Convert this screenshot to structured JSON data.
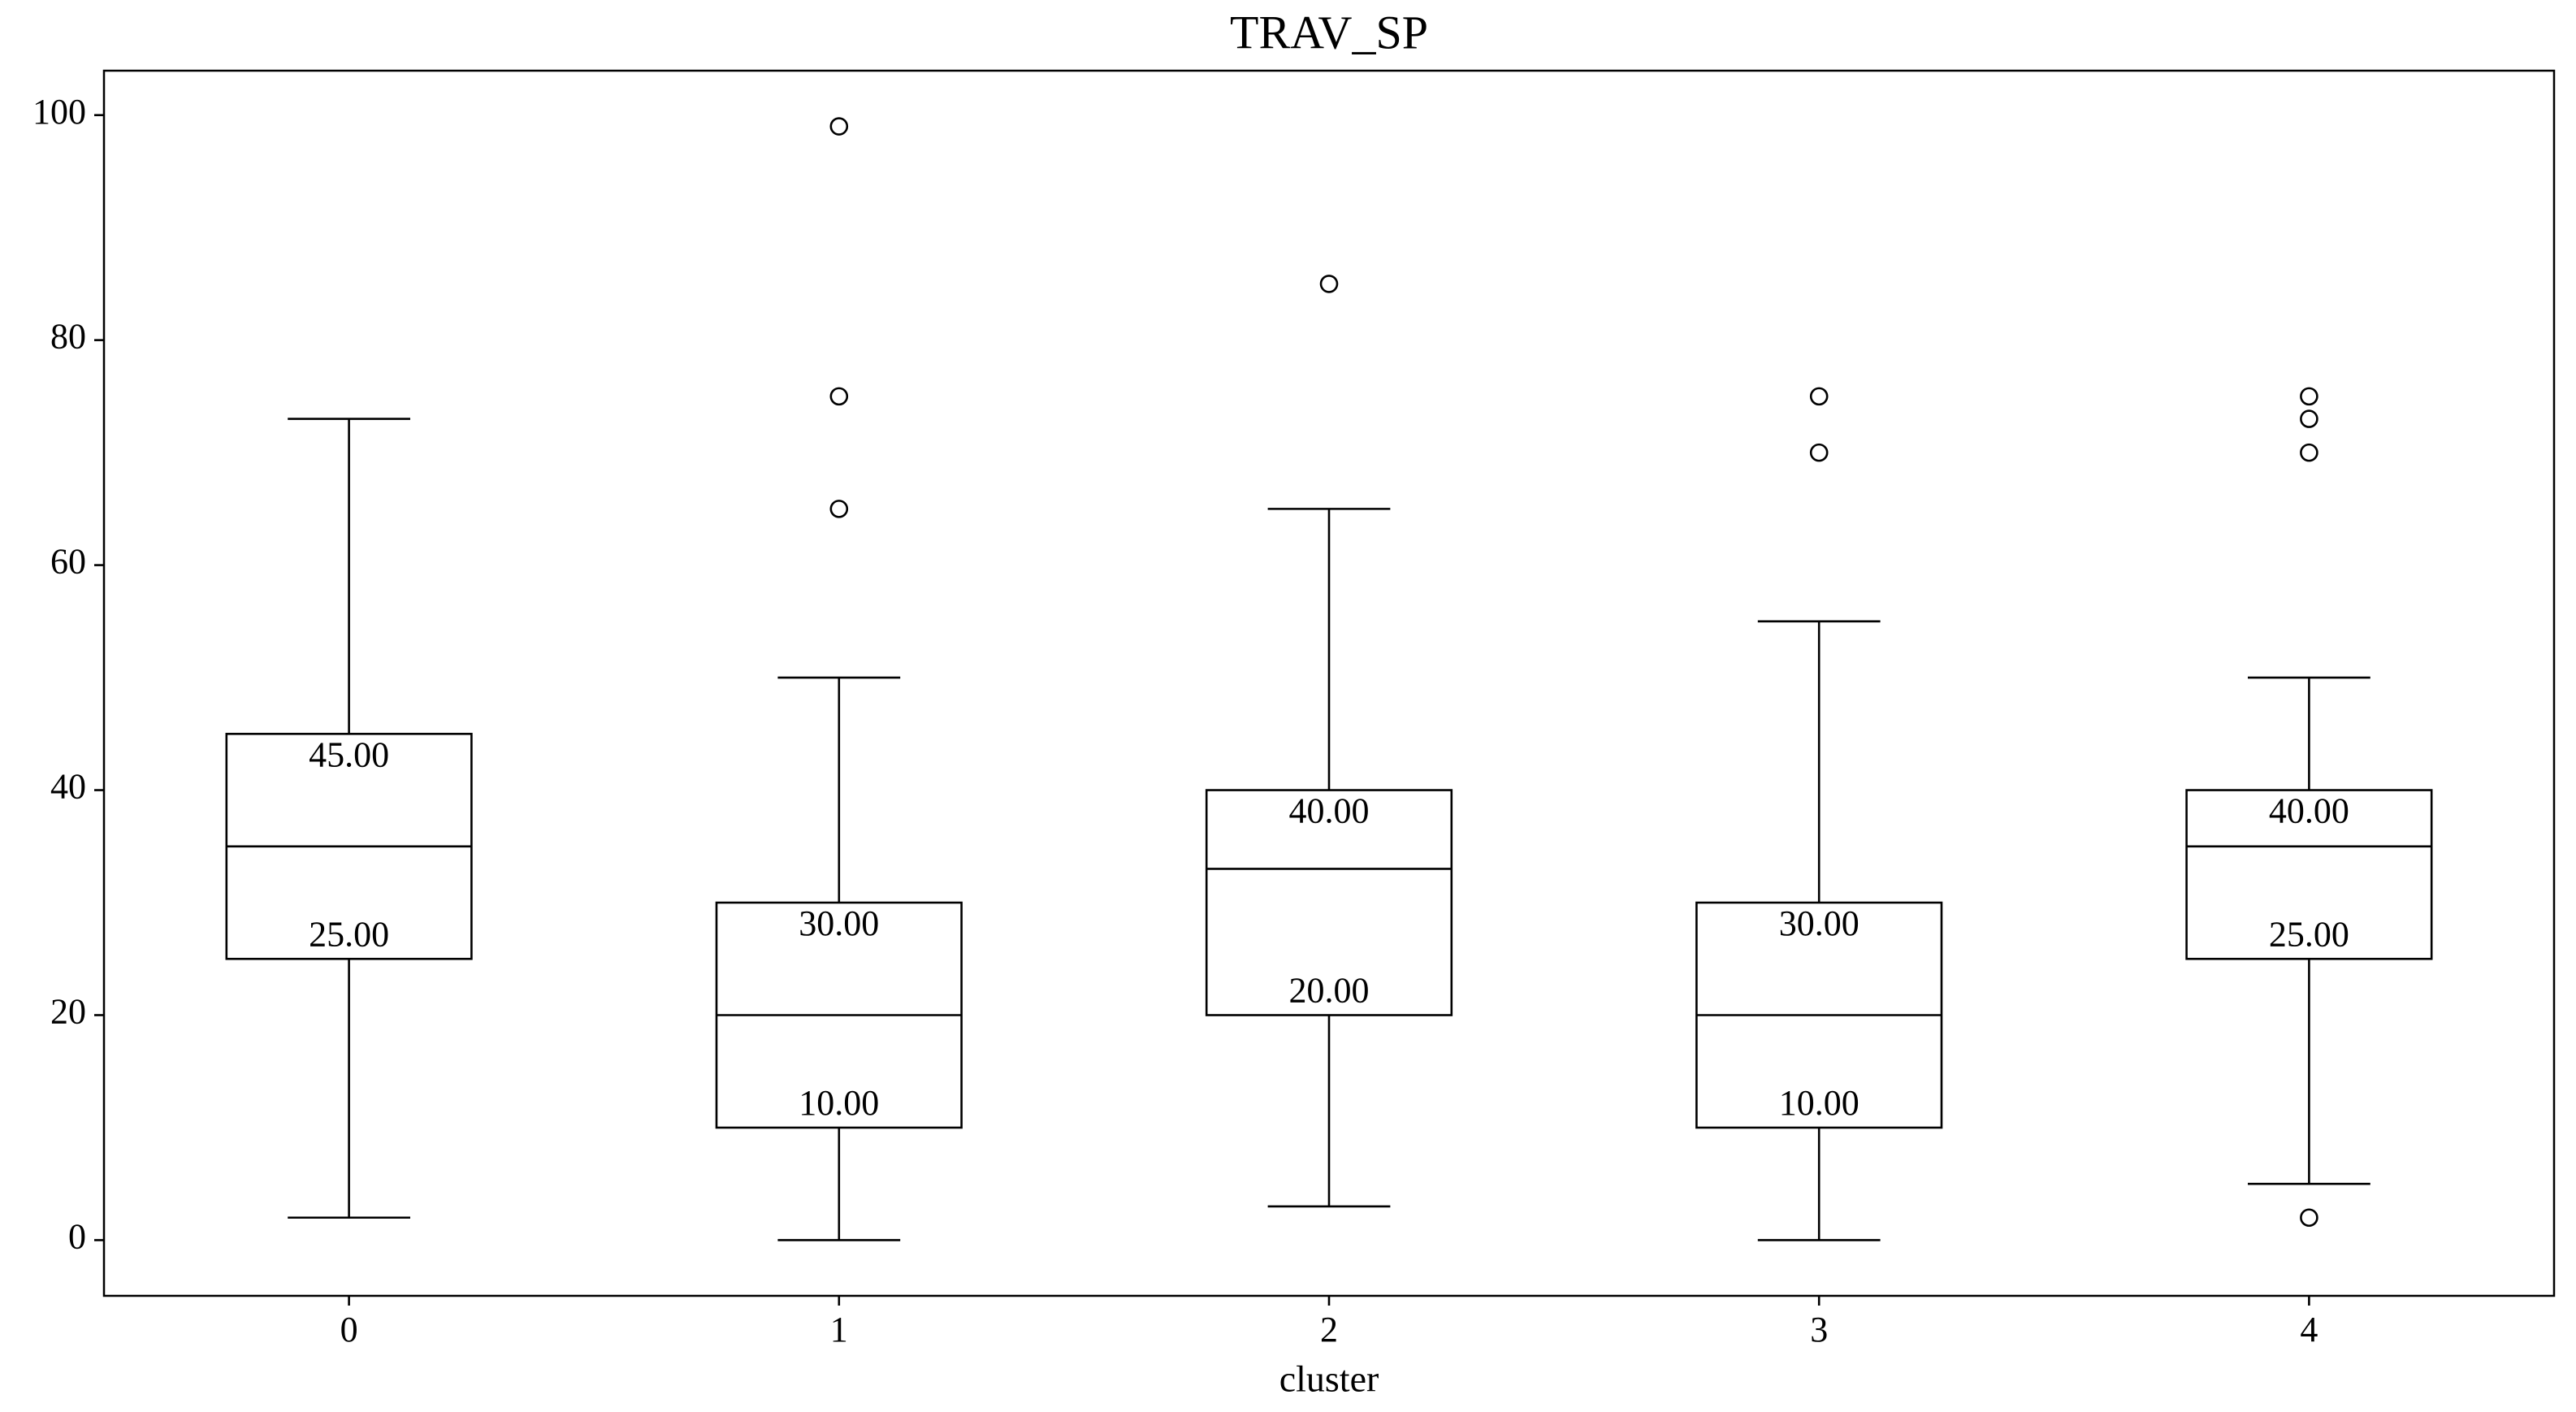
{
  "chart_data": {
    "type": "box",
    "title": "TRAV_SP",
    "xlabel": "cluster",
    "categories": [
      "0",
      "1",
      "2",
      "3",
      "4"
    ],
    "boxes": [
      {
        "whislo": 2,
        "q1": 25,
        "med": 35,
        "q3": 45,
        "whishi": 73,
        "fliers": [],
        "q1_label": "25.00",
        "q3_label": "45.00"
      },
      {
        "whislo": 0,
        "q1": 10,
        "med": 20,
        "q3": 30,
        "whishi": 50,
        "fliers": [
          65,
          75,
          99
        ],
        "q1_label": "10.00",
        "q3_label": "30.00"
      },
      {
        "whislo": 3,
        "q1": 20,
        "med": 33,
        "q3": 40,
        "whishi": 65,
        "fliers": [
          85
        ],
        "q1_label": "20.00",
        "q3_label": "40.00"
      },
      {
        "whislo": 0,
        "q1": 10,
        "med": 20,
        "q3": 30,
        "whishi": 55,
        "fliers": [
          70,
          75
        ],
        "q1_label": "10.00",
        "q3_label": "30.00"
      },
      {
        "whislo": 5,
        "q1": 25,
        "med": 35,
        "q3": 40,
        "whishi": 50,
        "fliers": [
          2,
          70,
          73,
          75
        ],
        "q1_label": "25.00",
        "q3_label": "40.00"
      }
    ],
    "color": "#000000",
    "ylim": [
      -4.95,
      103.95
    ],
    "yticks": [
      0,
      20,
      40,
      60,
      80,
      100
    ],
    "grid": false
  }
}
